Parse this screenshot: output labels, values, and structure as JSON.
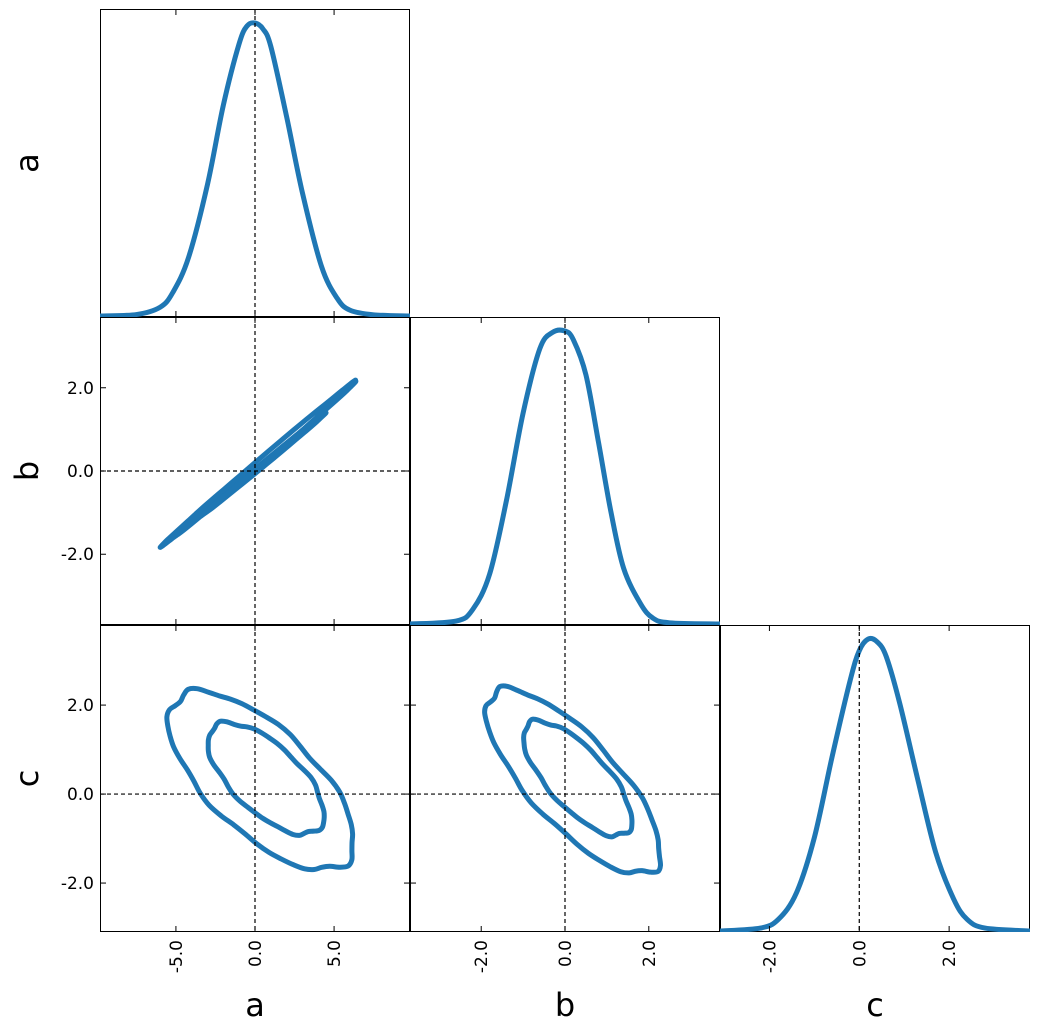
{
  "chart_data": {
    "type": "corner",
    "parameters": [
      "a",
      "b",
      "c"
    ],
    "truths": {
      "a": 0.0,
      "b": 0.0,
      "c": 0.0
    },
    "ranges": {
      "a": [
        -9.8,
        9.8
      ],
      "b": [
        -3.7,
        3.7
      ],
      "c": [
        -3.1,
        3.8
      ]
    },
    "ticks": {
      "a": {
        "values": [
          -5.0,
          0.0,
          5.0
        ],
        "labels": [
          "-5.0",
          "0.0",
          "5.0"
        ]
      },
      "b": {
        "values": [
          -2.0,
          0.0,
          2.0
        ],
        "labels": [
          "-2.0",
          "0.0",
          "2.0"
        ]
      },
      "c": {
        "values": [
          -2.0,
          0.0,
          2.0
        ],
        "labels": [
          "-2.0",
          "0.0",
          "2.0"
        ]
      }
    },
    "color": "#1f77b4",
    "marginals": [
      {
        "param": "a",
        "x": [
          -9.8,
          -7.5,
          -6.0,
          -5.2,
          -4.2,
          -3.0,
          -2.0,
          -1.0,
          -0.5,
          0.0,
          0.5,
          1.0,
          2.0,
          3.0,
          4.2,
          5.2,
          6.0,
          7.5,
          9.8
        ],
        "density": [
          0.0,
          0.005,
          0.03,
          0.08,
          0.2,
          0.45,
          0.72,
          0.93,
          0.99,
          1.0,
          0.98,
          0.92,
          0.68,
          0.42,
          0.17,
          0.06,
          0.02,
          0.004,
          0.0
        ]
      },
      {
        "param": "b",
        "x": [
          -3.7,
          -2.6,
          -2.2,
          -1.8,
          -1.4,
          -1.0,
          -0.6,
          -0.3,
          0.0,
          0.2,
          0.5,
          0.8,
          1.1,
          1.4,
          1.8,
          2.1,
          2.5,
          3.7
        ],
        "density": [
          0.0,
          0.01,
          0.05,
          0.17,
          0.42,
          0.72,
          0.94,
          0.995,
          1.0,
          0.97,
          0.85,
          0.62,
          0.38,
          0.19,
          0.07,
          0.02,
          0.004,
          0.0
        ]
      },
      {
        "param": "c",
        "x": [
          -3.1,
          -2.2,
          -1.8,
          -1.4,
          -1.0,
          -0.6,
          -0.2,
          0.0,
          0.2,
          0.4,
          0.6,
          0.9,
          1.3,
          1.7,
          2.1,
          2.4,
          2.8,
          3.8
        ],
        "density": [
          0.0,
          0.01,
          0.04,
          0.13,
          0.32,
          0.6,
          0.86,
          0.96,
          1.0,
          0.99,
          0.94,
          0.78,
          0.52,
          0.27,
          0.11,
          0.04,
          0.01,
          0.0
        ]
      }
    ],
    "contours": [
      {
        "x_param": "a",
        "y_param": "b",
        "levels": [
          "inner",
          "outer"
        ],
        "ellipses": [
          {
            "center": [
              0.5,
              0.15
            ],
            "semi_major": [
              3.6,
              1.15
            ],
            "semi_minor": [
              1.7,
              0.48
            ]
          },
          {
            "center": [
              0.3,
              0.2
            ],
            "semi_major": [
              5.6,
              1.85
            ],
            "semi_minor": [
              2.6,
              0.75
            ]
          }
        ]
      },
      {
        "x_param": "a",
        "y_param": "c",
        "levels": [
          "inner",
          "outer"
        ],
        "ellipses": [
          {
            "center": [
              0.7,
              0.35
            ],
            "semi_major": [
              3.3,
              -1.15
            ],
            "semi_minor": [
              1.6,
              0.5
            ]
          },
          {
            "center": [
              0.4,
              0.3
            ],
            "semi_major": [
              5.3,
              -1.85
            ],
            "semi_minor": [
              2.5,
              0.78
            ]
          }
        ]
      },
      {
        "x_param": "b",
        "y_param": "c",
        "levels": [
          "inner",
          "outer"
        ],
        "ellipses": [
          {
            "center": [
              0.3,
              0.35
            ],
            "semi_major": [
              1.2,
              -1.2
            ],
            "semi_minor": [
              0.48,
              0.48
            ]
          },
          {
            "center": [
              0.2,
              0.28
            ],
            "semi_major": [
              1.95,
              -1.95
            ],
            "semi_minor": [
              0.72,
              0.72
            ]
          }
        ]
      }
    ]
  }
}
